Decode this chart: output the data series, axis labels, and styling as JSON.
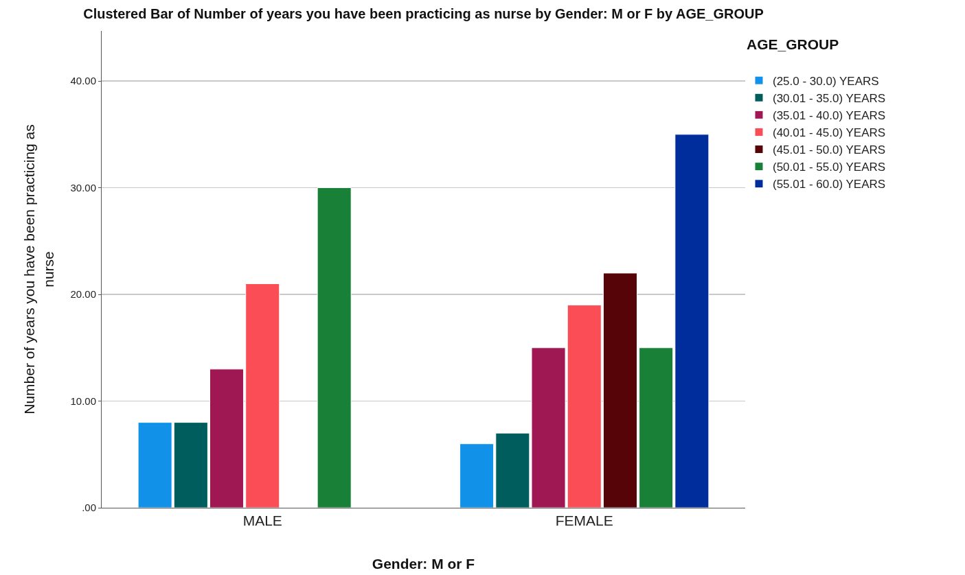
{
  "chart_data": {
    "type": "bar",
    "title": "Clustered Bar of Number of years you have been practicing as nurse by Gender: M or F by AGE_GROUP",
    "xlabel": "Gender: M or F",
    "ylabel": "Number of years you have been practicing as nurse",
    "legend_title": "AGE_GROUP",
    "categories": [
      "MALE",
      "FEMALE"
    ],
    "series": [
      {
        "name": "(25.0 - 30.0) YEARS",
        "color": "#1192e8",
        "values": [
          8,
          6
        ]
      },
      {
        "name": "(30.01 - 35.0) YEARS",
        "color": "#005d5d",
        "values": [
          8,
          7
        ]
      },
      {
        "name": "(35.01 - 40.0) YEARS",
        "color": "#9f1853",
        "values": [
          13,
          15
        ]
      },
      {
        "name": "(40.01 - 45.0) YEARS",
        "color": "#fa4d56",
        "values": [
          21,
          19
        ]
      },
      {
        "name": "(45.01 - 50.0) YEARS",
        "color": "#570408",
        "values": [
          null,
          22
        ]
      },
      {
        "name": "(50.01 - 55.0) YEARS",
        "color": "#198038",
        "values": [
          30,
          15
        ]
      },
      {
        "name": "(55.01 - 60.0) YEARS",
        "color": "#002d9c",
        "values": [
          null,
          35
        ]
      }
    ],
    "ylim": [
      0,
      44.7
    ],
    "yticks": [
      {
        "value": 0,
        "label": ".00"
      },
      {
        "value": 10,
        "label": "10.00"
      },
      {
        "value": 20,
        "label": "20.00"
      },
      {
        "value": 30,
        "label": "30.00"
      },
      {
        "value": 40,
        "label": "40.00"
      }
    ],
    "grid": "y",
    "legend": "top right"
  }
}
